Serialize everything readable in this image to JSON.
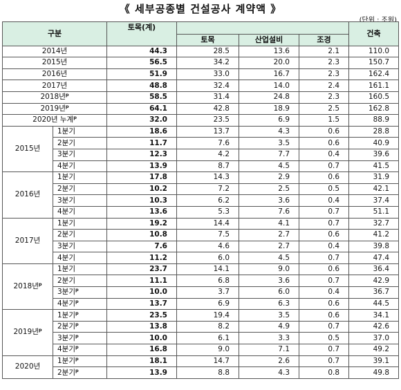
{
  "title": "《 세부공종별 건설공사 계약액 》",
  "unit": "(단위 : 조원)",
  "header": {
    "category": "구분",
    "civil_total": "토목(계)",
    "civil": "토목",
    "industrial": "산업설비",
    "landscape": "조경",
    "building": "건축"
  },
  "annual": [
    {
      "label": "2014년",
      "p": "",
      "civil_total": "44.3",
      "civil": "28.5",
      "industrial": "13.6",
      "landscape": "2.1",
      "building": "110.0"
    },
    {
      "label": "2015년",
      "p": "",
      "civil_total": "56.5",
      "civil": "34.2",
      "industrial": "20.0",
      "landscape": "2.3",
      "building": "150.7"
    },
    {
      "label": "2016년",
      "p": "",
      "civil_total": "51.9",
      "civil": "33.0",
      "industrial": "16.7",
      "landscape": "2.3",
      "building": "162.4"
    },
    {
      "label": "2017년",
      "p": "",
      "civil_total": "48.8",
      "civil": "32.4",
      "industrial": "14.0",
      "landscape": "2.4",
      "building": "161.1"
    },
    {
      "label": "2018년",
      "p": "p",
      "civil_total": "58.5",
      "civil": "31.4",
      "industrial": "24.8",
      "landscape": "2.3",
      "building": "160.5"
    },
    {
      "label": "2019년",
      "p": "p",
      "civil_total": "64.1",
      "civil": "42.8",
      "industrial": "18.9",
      "landscape": "2.5",
      "building": "162.8"
    },
    {
      "label": "2020년 누계",
      "p": "p",
      "civil_total": "32.0",
      "civil": "23.5",
      "industrial": "6.9",
      "landscape": "1.5",
      "building": "88.9"
    }
  ],
  "quarterly": [
    {
      "year": "2015년",
      "p": "",
      "rows": [
        {
          "q": "1분기",
          "p": "",
          "civil_total": "18.6",
          "civil": "13.7",
          "industrial": "4.3",
          "landscape": "0.6",
          "building": "28.8"
        },
        {
          "q": "2분기",
          "p": "",
          "civil_total": "11.7",
          "civil": "7.6",
          "industrial": "3.5",
          "landscape": "0.6",
          "building": "40.9"
        },
        {
          "q": "3분기",
          "p": "",
          "civil_total": "12.3",
          "civil": "4.2",
          "industrial": "7.7",
          "landscape": "0.4",
          "building": "39.6"
        },
        {
          "q": "4분기",
          "p": "",
          "civil_total": "13.9",
          "civil": "8.7",
          "industrial": "4.5",
          "landscape": "0.7",
          "building": "41.5"
        }
      ]
    },
    {
      "year": "2016년",
      "p": "",
      "rows": [
        {
          "q": "1분기",
          "p": "",
          "civil_total": "17.8",
          "civil": "14.3",
          "industrial": "2.9",
          "landscape": "0.6",
          "building": "31.9"
        },
        {
          "q": "2분기",
          "p": "",
          "civil_total": "10.2",
          "civil": "7.2",
          "industrial": "2.5",
          "landscape": "0.5",
          "building": "42.1"
        },
        {
          "q": "3분기",
          "p": "",
          "civil_total": "10.3",
          "civil": "6.2",
          "industrial": "3.6",
          "landscape": "0.4",
          "building": "37.4"
        },
        {
          "q": "4분기",
          "p": "",
          "civil_total": "13.6",
          "civil": "5.3",
          "industrial": "7.6",
          "landscape": "0.7",
          "building": "51.1"
        }
      ]
    },
    {
      "year": "2017년",
      "p": "",
      "rows": [
        {
          "q": "1분기",
          "p": "",
          "civil_total": "19.2",
          "civil": "14.4",
          "industrial": "4.1",
          "landscape": "0.7",
          "building": "32.7"
        },
        {
          "q": "2분기",
          "p": "",
          "civil_total": "10.8",
          "civil": "7.5",
          "industrial": "2.7",
          "landscape": "0.6",
          "building": "41.2"
        },
        {
          "q": "3분기",
          "p": "",
          "civil_total": "7.6",
          "civil": "4.6",
          "industrial": "2.7",
          "landscape": "0.4",
          "building": "39.8"
        },
        {
          "q": "4분기",
          "p": "",
          "civil_total": "11.2",
          "civil": "6.0",
          "industrial": "4.5",
          "landscape": "0.7",
          "building": "47.4"
        }
      ]
    },
    {
      "year": "2018년",
      "p": "p",
      "rows": [
        {
          "q": "1분기",
          "p": "",
          "civil_total": "23.7",
          "civil": "14.1",
          "industrial": "9.0",
          "landscape": "0.6",
          "building": "36.4"
        },
        {
          "q": "2분기",
          "p": "",
          "civil_total": "11.1",
          "civil": "6.8",
          "industrial": "3.6",
          "landscape": "0.7",
          "building": "42.9"
        },
        {
          "q": "3분기",
          "p": "p",
          "civil_total": "10.0",
          "civil": "3.7",
          "industrial": "6.0",
          "landscape": "0.4",
          "building": "36.7"
        },
        {
          "q": "4분기",
          "p": "p",
          "civil_total": "13.7",
          "civil": "6.9",
          "industrial": "6.3",
          "landscape": "0.6",
          "building": "44.5"
        }
      ]
    },
    {
      "year": "2019년",
      "p": "p",
      "rows": [
        {
          "q": "1분기",
          "p": "p",
          "civil_total": "23.5",
          "civil": "19.4",
          "industrial": "3.5",
          "landscape": "0.6",
          "building": "34.1"
        },
        {
          "q": "2분기",
          "p": "p",
          "civil_total": "13.8",
          "civil": "8.2",
          "industrial": "4.9",
          "landscape": "0.7",
          "building": "42.6"
        },
        {
          "q": "3분기",
          "p": "p",
          "civil_total": "10.0",
          "civil": "6.1",
          "industrial": "3.3",
          "landscape": "0.5",
          "building": "37.0"
        },
        {
          "q": "4분기",
          "p": "p",
          "civil_total": "16.8",
          "civil": "9.0",
          "industrial": "7.1",
          "landscape": "0.7",
          "building": "49.2"
        }
      ]
    },
    {
      "year": "2020년",
      "p": "",
      "rows": [
        {
          "q": "1분기",
          "p": "p",
          "civil_total": "18.1",
          "civil": "14.7",
          "industrial": "2.6",
          "landscape": "0.7",
          "building": "39.1"
        },
        {
          "q": "2분기",
          "p": "p",
          "civil_total": "13.9",
          "civil": "8.8",
          "industrial": "4.3",
          "landscape": "0.8",
          "building": "49.8"
        }
      ]
    }
  ]
}
